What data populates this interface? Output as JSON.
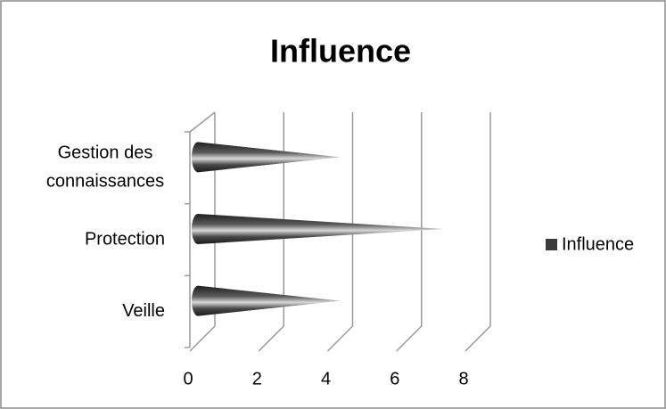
{
  "chart_data": {
    "type": "bar",
    "title": "Influence",
    "categories": [
      "Veille",
      "Protection",
      "Gestion des connaissances"
    ],
    "series": [
      {
        "name": "Influence",
        "color": "#3a3a3a",
        "values": [
          4,
          7,
          4
        ]
      }
    ],
    "xlim": [
      0,
      8
    ],
    "xticks": [
      0,
      2,
      4,
      6,
      8
    ],
    "grid": true,
    "legend": "right"
  }
}
